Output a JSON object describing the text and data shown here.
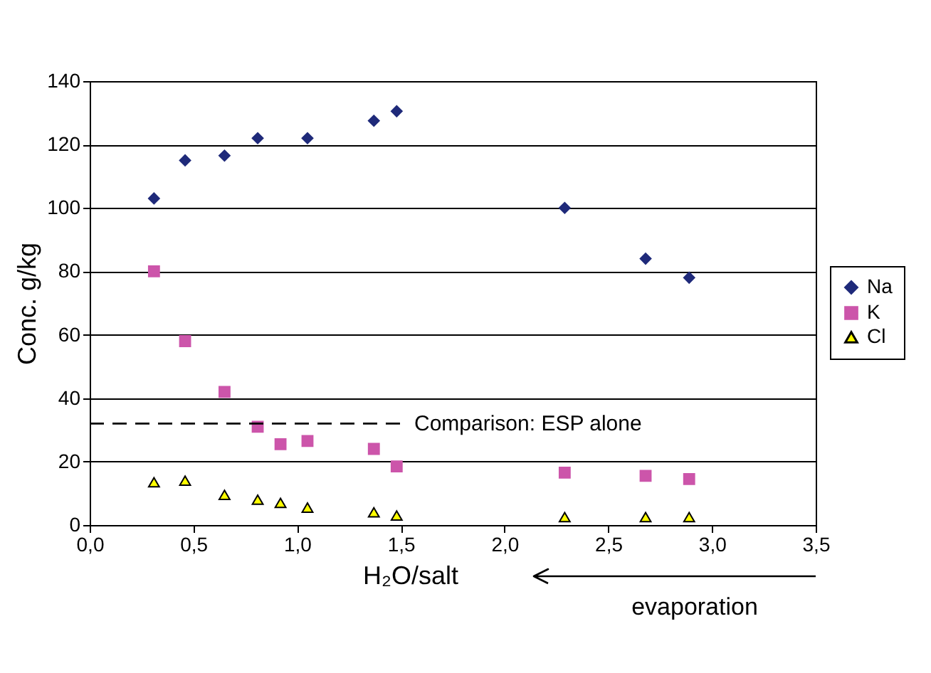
{
  "chart_data": {
    "type": "scatter",
    "xlabel": "H₂O/salt",
    "ylabel": "Conc. g/kg",
    "xlim": [
      0,
      3.5
    ],
    "xticks": [
      {
        "value": 0,
        "label": "0,0"
      },
      {
        "value": 0.5,
        "label": "0,5"
      },
      {
        "value": 1,
        "label": "1,0"
      },
      {
        "value": 1.5,
        "label": "1,5"
      },
      {
        "value": 2,
        "label": "2,0"
      },
      {
        "value": 2.5,
        "label": "2,5"
      },
      {
        "value": 3,
        "label": "3,0"
      },
      {
        "value": 3.5,
        "label": "3,5"
      }
    ],
    "ylim": [
      0,
      140
    ],
    "yticks": [
      0,
      20,
      40,
      60,
      80,
      100,
      120,
      140
    ],
    "grid": "y",
    "legend": "right",
    "series": [
      {
        "name": "Na",
        "color": "#1f2a7a",
        "marker": "diamond",
        "x": [
          0.31,
          0.46,
          0.65,
          0.81,
          1.05,
          1.37,
          1.48,
          2.29,
          2.68,
          2.89
        ],
        "values": [
          103,
          115,
          116.5,
          122,
          122,
          127.5,
          130.5,
          100,
          84,
          78
        ]
      },
      {
        "name": "K",
        "color": "#cc55aa",
        "marker": "square",
        "x": [
          0.31,
          0.46,
          0.65,
          0.81,
          0.92,
          1.05,
          1.37,
          1.48,
          2.29,
          2.68,
          2.89
        ],
        "values": [
          80,
          58,
          42,
          31,
          25.5,
          26.5,
          24,
          18.5,
          16.5,
          15.5,
          14.5
        ]
      },
      {
        "name": "Cl",
        "color": "#ffff00",
        "marker": "triangle",
        "x": [
          0.31,
          0.46,
          0.65,
          0.81,
          0.92,
          1.05,
          1.37,
          1.48,
          2.29,
          2.68,
          2.89
        ],
        "values": [
          13.5,
          14,
          9.5,
          8,
          7,
          5.5,
          4,
          3,
          2.5,
          2.5,
          2.5
        ]
      }
    ],
    "ref_lines": [
      {
        "axis": "y",
        "value": 32,
        "label": "Comparison: ESP alone",
        "color": "#000000",
        "line_style": "dashed"
      }
    ],
    "annotations": [
      "evaporation"
    ]
  }
}
